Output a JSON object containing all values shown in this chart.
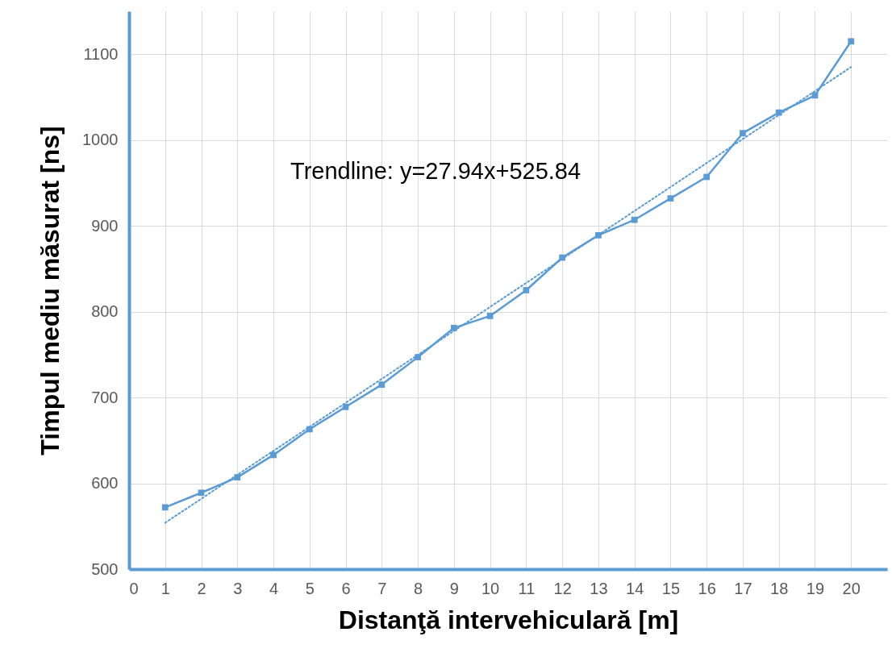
{
  "chart_data": {
    "type": "line",
    "xlabel": "Distanţă intervehiculară [m]",
    "ylabel": "Timpul mediu măsurat [ns]",
    "x": [
      1,
      2,
      3,
      4,
      5,
      6,
      7,
      8,
      9,
      10,
      11,
      12,
      13,
      14,
      15,
      16,
      17,
      18,
      19,
      20
    ],
    "series": [
      {
        "color": "#5b9bd5",
        "marker": "square",
        "line_style": "solid",
        "values": [
          572,
          589,
          607,
          633,
          663,
          689,
          715,
          747,
          781,
          795,
          825,
          863,
          889,
          907,
          932,
          957,
          1008,
          1032,
          1052,
          1115
        ]
      },
      {
        "type": "line",
        "color": "#5b9bd5",
        "marker": "none",
        "line_style": "dotted",
        "x": [
          1,
          20
        ],
        "values": [
          554,
          1085
        ]
      }
    ],
    "annotations": [
      "Trendline: y=27.94x+525.84"
    ],
    "xlim": [
      0,
      21
    ],
    "xticks": [
      0,
      1,
      2,
      3,
      4,
      5,
      6,
      7,
      8,
      9,
      10,
      11,
      12,
      13,
      14,
      15,
      16,
      17,
      18,
      19,
      20
    ],
    "ylim": [
      500,
      1150
    ],
    "yticks": [
      500,
      600,
      700,
      800,
      900,
      1000,
      1100
    ],
    "grid": true
  }
}
